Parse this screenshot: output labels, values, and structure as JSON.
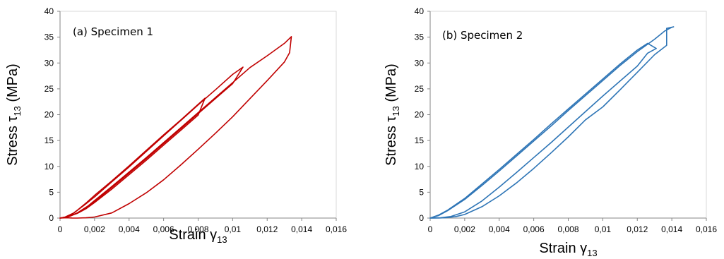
{
  "chart_data": [
    {
      "type": "line",
      "annotation": "(a) Specimen 1",
      "xlabel": "Strain γ",
      "xlabel_sub": "13",
      "ylabel": "Stress τ",
      "ylabel_sub": "13",
      "ylabel_unit": " (MPa)",
      "xlim": [
        0,
        0.016
      ],
      "ylim": [
        0,
        40
      ],
      "x_ticks": [
        "0",
        "0,002",
        "0,004",
        "0,006",
        "0,008",
        "0,01",
        "0,012",
        "0,014",
        "0,016"
      ],
      "y_ticks": [
        "0",
        "5",
        "10",
        "15",
        "20",
        "25",
        "30",
        "35",
        "40"
      ],
      "color": "#c00000",
      "grid": false,
      "legend": "none",
      "series": [
        {
          "x": [
            0,
            0.0005,
            0.001,
            0.0015,
            0.002,
            0.003,
            0.004,
            0.005,
            0.006,
            0.007,
            0.008,
            0.0084,
            0.008,
            0.007,
            0.006,
            0.005,
            0.004,
            0.003,
            0.002,
            0.0015,
            0.001,
            0.0006,
            0.0003,
            0
          ],
          "y": [
            0,
            0.3,
            0.9,
            1.8,
            3.0,
            5.6,
            8.4,
            11.2,
            14.1,
            17.0,
            19.9,
            23.2,
            22.0,
            19.0,
            16.1,
            13.1,
            10.1,
            7.2,
            4.4,
            2.9,
            1.5,
            0.5,
            0.1,
            0
          ]
        },
        {
          "x": [
            0,
            0.0006,
            0.0012,
            0.002,
            0.003,
            0.004,
            0.005,
            0.006,
            0.007,
            0.008,
            0.009,
            0.01,
            0.0106,
            0.01,
            0.009,
            0.008,
            0.007,
            0.006,
            0.005,
            0.004,
            0.003,
            0.002,
            0.0014,
            0.0008,
            0.0003,
            0
          ],
          "y": [
            0,
            0.4,
            1.3,
            3.2,
            5.9,
            8.7,
            11.5,
            14.4,
            17.3,
            20.2,
            23.1,
            26.0,
            29.2,
            27.8,
            24.8,
            21.9,
            18.9,
            15.9,
            12.9,
            9.9,
            7.0,
            4.1,
            2.5,
            1.0,
            0.2,
            0
          ]
        },
        {
          "x": [
            0,
            0.0005,
            0.001,
            0.0016,
            0.002,
            0.003,
            0.004,
            0.005,
            0.006,
            0.007,
            0.008,
            0.009,
            0.01,
            0.011,
            0.012,
            0.013,
            0.0134,
            0.0133,
            0.013,
            0.012,
            0.011,
            0.01,
            0.009,
            0.008,
            0.007,
            0.006,
            0.005,
            0.004,
            0.003,
            0.002,
            0.0015,
            0.001,
            0.0007,
            0.0004,
            0
          ],
          "y": [
            0,
            0.3,
            1.0,
            2.3,
            3.4,
            6.1,
            8.9,
            11.7,
            14.6,
            17.5,
            20.4,
            23.3,
            26.2,
            29.1,
            31.4,
            33.8,
            35.1,
            32.0,
            30.2,
            26.6,
            23.1,
            19.6,
            16.4,
            13.3,
            10.3,
            7.4,
            4.9,
            2.8,
            1.0,
            0.2,
            0.05,
            0,
            0.02,
            0.05,
            0
          ]
        }
      ]
    },
    {
      "type": "line",
      "annotation": "(b) Specimen 2",
      "xlabel": "Strain γ",
      "xlabel_sub": "13",
      "ylabel": "Stress τ",
      "ylabel_sub": "13",
      "ylabel_unit": " (MPa)",
      "xlim": [
        0,
        0.016
      ],
      "ylim": [
        0,
        40
      ],
      "x_ticks": [
        "0",
        "0,002",
        "0,004",
        "0,006",
        "0,008",
        "0,01",
        "0,012",
        "0,014",
        "0,016"
      ],
      "y_ticks": [
        "0",
        "5",
        "10",
        "15",
        "20",
        "25",
        "30",
        "35",
        "40"
      ],
      "color": "#2e75b6",
      "grid": false,
      "legend": "none",
      "series": [
        {
          "x": [
            0,
            0.0005,
            0.001,
            0.002,
            0.003,
            0.004,
            0.005,
            0.006,
            0.007,
            0.008,
            0.009,
            0.01,
            0.011,
            0.012,
            0.0126,
            0.0131,
            0.0126,
            0.012,
            0.011,
            0.01,
            0.009,
            0.008,
            0.007,
            0.006,
            0.005,
            0.004,
            0.003,
            0.002,
            0.0012,
            0.0006,
            0
          ],
          "y": [
            0,
            0.6,
            1.5,
            3.8,
            6.6,
            9.4,
            12.3,
            15.2,
            18.2,
            21.1,
            24.0,
            26.9,
            29.8,
            32.5,
            33.8,
            32.8,
            31.9,
            29.4,
            26.5,
            23.6,
            20.6,
            17.6,
            14.6,
            11.7,
            8.8,
            6.0,
            3.3,
            1.2,
            0.3,
            0.05,
            0
          ]
        },
        {
          "x": [
            0,
            0.0005,
            0.001,
            0.002,
            0.003,
            0.004,
            0.005,
            0.006,
            0.007,
            0.008,
            0.009,
            0.01,
            0.011,
            0.012,
            0.013,
            0.0136,
            0.014,
            0.0141,
            0.0137,
            0.0137,
            0.013,
            0.012,
            0.011,
            0.01,
            0.009,
            0.008,
            0.007,
            0.006,
            0.005,
            0.004,
            0.003,
            0.002,
            0.0015,
            0.001,
            0.0005,
            0
          ],
          "y": [
            0,
            0.5,
            1.4,
            3.6,
            6.3,
            9.1,
            12.0,
            14.9,
            17.8,
            20.8,
            23.7,
            26.6,
            29.5,
            32.2,
            34.6,
            36.2,
            36.9,
            37.0,
            36.7,
            33.4,
            31.6,
            28.2,
            24.8,
            21.5,
            19.0,
            15.7,
            12.6,
            9.6,
            6.8,
            4.3,
            2.2,
            0.7,
            0.3,
            0.1,
            0.02,
            0
          ]
        }
      ]
    }
  ]
}
